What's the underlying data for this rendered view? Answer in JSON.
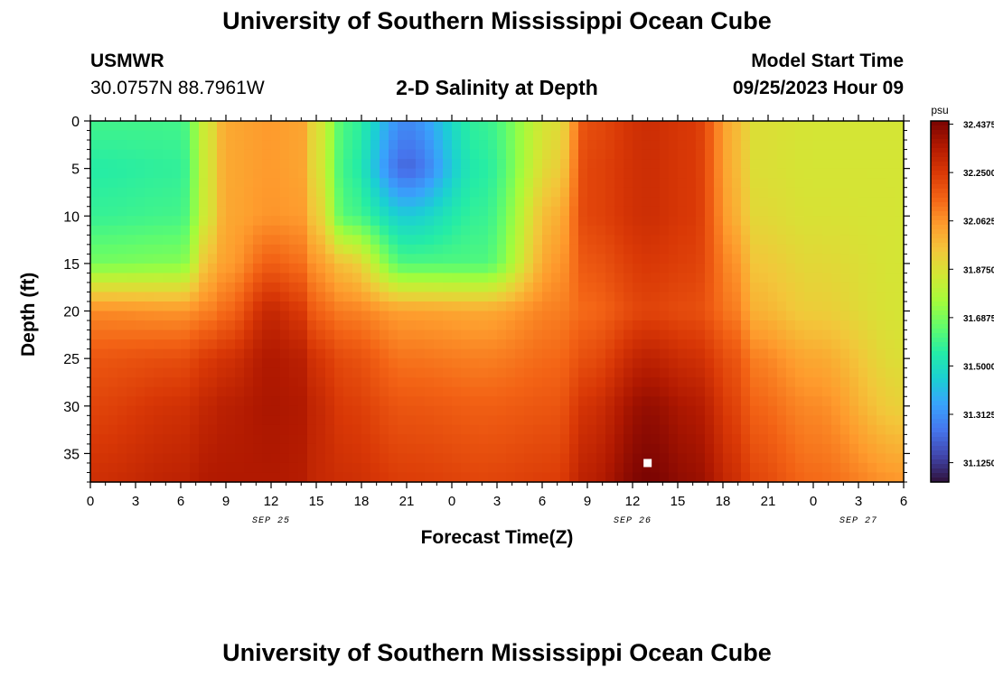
{
  "header": {
    "title": "University of Southern Mississippi Ocean Cube",
    "station_id": "USMWR",
    "station_coords": "30.0757N  88.7961W",
    "subtitle": "2-D Salinity at Depth",
    "model_start_label": "Model Start Time",
    "model_start_value": "09/25/2023 Hour 09"
  },
  "footer": {
    "title": "University of Southern Mississippi Ocean Cube"
  },
  "chart_data": {
    "type": "heatmap",
    "title": "2-D Salinity at Depth",
    "xlabel": "Forecast Time(Z)",
    "ylabel": "Depth (ft)",
    "x_tick_labels": [
      "0",
      "3",
      "6",
      "9",
      "12",
      "15",
      "18",
      "21",
      "0",
      "3",
      "6",
      "9",
      "12",
      "15",
      "18",
      "21",
      "0",
      "3",
      "6"
    ],
    "x_range_hours": [
      0,
      54
    ],
    "date_labels": [
      {
        "label": "SEP 25",
        "hour": 12
      },
      {
        "label": "SEP 26",
        "hour": 36
      },
      {
        "label": "SEP 27",
        "hour": 51
      }
    ],
    "y_ticks": [
      0,
      5,
      10,
      15,
      20,
      25,
      30,
      35
    ],
    "y_range_ft": [
      0,
      38
    ],
    "y_inverted": true,
    "colorbar": {
      "unit": "psu",
      "min": 31.05,
      "max": 32.45,
      "tick_labels": [
        "32.4375",
        "32.2500",
        "32.0625",
        "31.8750",
        "31.6875",
        "31.5000",
        "31.3125",
        "31.1250"
      ]
    },
    "colormap": [
      "#30123b",
      "#4145ab",
      "#4675ed",
      "#39a2fc",
      "#1bcfd4",
      "#24eca6",
      "#61fc6c",
      "#a4fc3b",
      "#d1e834",
      "#f3c63a",
      "#fe9b2d",
      "#f36315",
      "#d93806",
      "#b11901",
      "#7a0402"
    ],
    "marker": {
      "hour": 37,
      "depth_ft": 36,
      "color": "#ffffff"
    },
    "salinity_field": {
      "description_units": "psu",
      "depth_rows_ft": [
        0,
        5,
        10,
        15,
        20,
        25,
        30,
        38
      ],
      "columns": [
        {
          "hour": 0,
          "values": [
            31.6,
            31.55,
            31.58,
            31.68,
            32.08,
            32.18,
            32.22,
            32.28
          ]
        },
        {
          "hour": 6,
          "values": [
            31.6,
            31.57,
            31.6,
            31.7,
            32.06,
            32.2,
            32.27,
            32.32
          ]
        },
        {
          "hour": 8,
          "values": [
            31.88,
            31.88,
            31.88,
            31.98,
            32.1,
            32.25,
            32.31,
            32.35
          ]
        },
        {
          "hour": 9,
          "values": [
            32.02,
            32.02,
            32.02,
            32.04,
            32.14,
            32.27,
            32.33,
            32.35
          ]
        },
        {
          "hour": 12,
          "values": [
            32.05,
            32.05,
            32.06,
            32.16,
            32.3,
            32.35,
            32.36,
            32.35
          ]
        },
        {
          "hour": 14,
          "values": [
            32.03,
            32.03,
            32.05,
            32.13,
            32.25,
            32.33,
            32.35,
            32.34
          ]
        },
        {
          "hour": 15,
          "values": [
            31.88,
            31.88,
            31.93,
            32.05,
            32.15,
            32.26,
            32.3,
            32.3
          ]
        },
        {
          "hour": 17,
          "values": [
            31.6,
            31.58,
            31.62,
            31.95,
            32.1,
            32.2,
            32.24,
            32.28
          ]
        },
        {
          "hour": 21,
          "values": [
            31.3,
            31.22,
            31.45,
            31.62,
            32.04,
            32.12,
            32.18,
            32.24
          ]
        },
        {
          "hour": 26,
          "values": [
            31.58,
            31.55,
            31.58,
            31.62,
            32.02,
            32.1,
            32.16,
            32.22
          ]
        },
        {
          "hour": 31,
          "values": [
            31.88,
            31.92,
            32.0,
            32.05,
            32.1,
            32.14,
            32.18,
            32.24
          ]
        },
        {
          "hour": 33,
          "values": [
            32.2,
            32.22,
            32.22,
            32.18,
            32.14,
            32.2,
            32.27,
            32.33
          ]
        },
        {
          "hour": 37,
          "values": [
            32.28,
            32.28,
            32.28,
            32.25,
            32.22,
            32.32,
            32.4,
            32.45
          ]
        },
        {
          "hour": 40,
          "values": [
            32.25,
            32.25,
            32.25,
            32.23,
            32.2,
            32.28,
            32.35,
            32.4
          ]
        },
        {
          "hour": 43,
          "values": [
            31.98,
            31.98,
            32.0,
            32.06,
            32.1,
            32.18,
            32.22,
            32.28
          ]
        },
        {
          "hour": 44,
          "values": [
            31.88,
            31.88,
            31.9,
            31.95,
            32.0,
            32.1,
            32.15,
            32.22
          ]
        },
        {
          "hour": 48,
          "values": [
            31.86,
            31.86,
            31.87,
            31.9,
            31.93,
            32.02,
            32.08,
            32.14
          ]
        },
        {
          "hour": 54,
          "values": [
            31.86,
            31.86,
            31.86,
            31.86,
            31.86,
            31.88,
            31.92,
            32.06
          ]
        }
      ]
    }
  }
}
